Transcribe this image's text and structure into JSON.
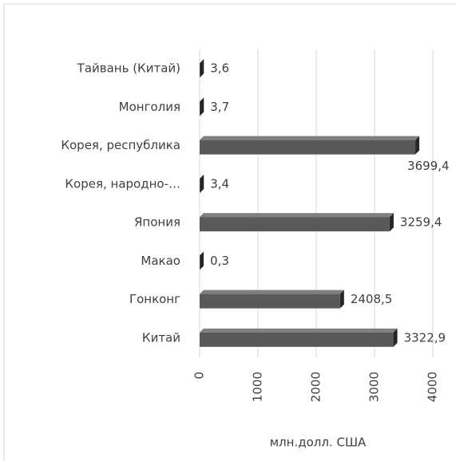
{
  "chart_data": {
    "type": "bar",
    "orientation": "horizontal",
    "categories": [
      "Тайвань (Китай)",
      "Монголия",
      "Корея, республика",
      "Корея, народно-…",
      "Япония",
      "Макао",
      "Гонконг",
      "Китай"
    ],
    "values": [
      3.6,
      3.7,
      3699.4,
      3.4,
      3259.4,
      0.3,
      2408.5,
      3322.9
    ],
    "value_labels": [
      "3,6",
      "3,7",
      "3699,4",
      "3,4",
      "3259,4",
      "0,3",
      "2408,5",
      "3322,9"
    ],
    "color": "#595959",
    "xlim": [
      0,
      4000
    ],
    "xticks": [
      0,
      1000,
      2000,
      3000,
      4000
    ],
    "grid": true,
    "xlabel": "млн.долл. США"
  }
}
